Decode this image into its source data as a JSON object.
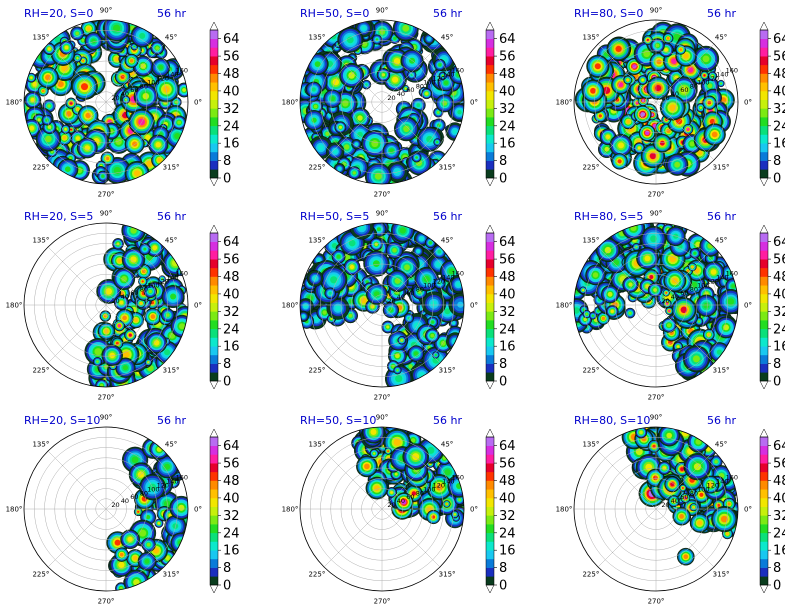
{
  "chart_data": {
    "type": "polar-contourf",
    "figure_layout": "3x3 grid of polar plots, each with its own vertical colorbar to the right",
    "angular_tick_labels": [
      "0°",
      "45°",
      "90°",
      "135°",
      "180°",
      "225°",
      "270°",
      "315°"
    ],
    "radial_tick_labels": [
      "20",
      "40",
      "60",
      "80",
      "100",
      "120",
      "140",
      "160"
    ],
    "colorbar": {
      "ticks": [
        "0",
        "8",
        "16",
        "24",
        "32",
        "40",
        "48",
        "56",
        "64"
      ],
      "min": 0,
      "max": 68,
      "step": 4,
      "extend": "both",
      "colors": [
        "#0a3c1e",
        "#1a2fbf",
        "#0a7bd9",
        "#19c8f0",
        "#0ce8cc",
        "#0be07a",
        "#22dd22",
        "#7bea14",
        "#c6f00c",
        "#f2e600",
        "#ffc000",
        "#ff8a00",
        "#ff3300",
        "#e6002c",
        "#ff1ea0",
        "#d62ee0",
        "#b86cf2"
      ],
      "extend_low_color": "#ffffff",
      "extend_high_color": "#ffffff"
    },
    "panels": [
      {
        "title_left": "RH=20, S=0",
        "title_right": "56 hr",
        "rh": 20,
        "shear": 0,
        "max_value": 64
      },
      {
        "title_left": "RH=50, S=0",
        "title_right": "56 hr",
        "rh": 50,
        "shear": 0,
        "max_value": 64
      },
      {
        "title_left": "RH=80, S=0",
        "title_right": "56 hr",
        "rh": 80,
        "shear": 0,
        "max_value": 64
      },
      {
        "title_left": "RH=20, S=5",
        "title_right": "56 hr",
        "rh": 20,
        "shear": 5,
        "max_value": 64
      },
      {
        "title_left": "RH=50, S=5",
        "title_right": "56 hr",
        "rh": 50,
        "shear": 5,
        "max_value": 64
      },
      {
        "title_left": "RH=80, S=5",
        "title_right": "56 hr",
        "rh": 80,
        "shear": 5,
        "max_value": 64
      },
      {
        "title_left": "RH=20, S=10",
        "title_right": "56 hr",
        "rh": 20,
        "shear": 10,
        "max_value": 64
      },
      {
        "title_left": "RH=50, S=10",
        "title_right": "56 hr",
        "rh": 50,
        "shear": 10,
        "max_value": 64
      },
      {
        "title_left": "RH=80, S=10",
        "title_right": "56 hr",
        "rh": 80,
        "shear": 10,
        "max_value": 64
      }
    ]
  }
}
